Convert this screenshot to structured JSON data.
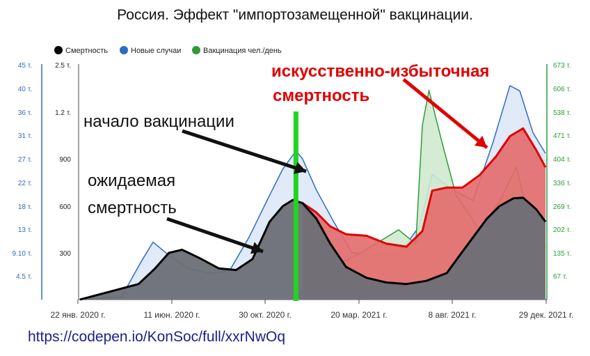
{
  "title": "Россия. Эффект \"импортозамещенной\" вакцинации.",
  "url_text": "https://codepen.io/KonSoc/full/xxrNwOq",
  "chart_data": {
    "type": "area",
    "legend": [
      {
        "name": "Смертность",
        "color": "#000000"
      },
      {
        "name": "Новые случаи",
        "color": "#2b6cc4"
      },
      {
        "name": "Вакцинация чел./день",
        "color": "#2e9a3a"
      }
    ],
    "legend_position": "top-left",
    "x_ticks": [
      "22 янв. 2020 г.",
      "11 июн. 2020 г.",
      "30 окт. 2020 г.",
      "20 мар. 2021 г.",
      "8 авг. 2021 г.",
      "29 дек. 2021 г."
    ],
    "x_range": [
      "2020-01-22",
      "2021-12-29"
    ],
    "y_left_ticks": [
      "4.5 т.",
      "9.10 т.",
      "13 т.",
      "18 т.",
      "22 т.",
      "27 т.",
      "31 т.",
      "36 т.",
      "40 т.",
      "45 т."
    ],
    "y_left_range": [
      0,
      45000
    ],
    "y_mid_ticks": [
      "300",
      "600",
      "900",
      "1.2 т.",
      "2.5 т."
    ],
    "y_right_ticks": [
      "67 т.",
      "135 т.",
      "202 т.",
      "269 т.",
      "336 т.",
      "404 т.",
      "471 т.",
      "538 т.",
      "606 т.",
      "673 т."
    ],
    "y_right_range": [
      0,
      673000
    ],
    "grid": false,
    "series": [
      {
        "name": "Смертность",
        "color": "#000000",
        "fill": "#6b6f76",
        "x": [
          "2020-01-22",
          "2020-04-20",
          "2020-05-15",
          "2020-06-05",
          "2020-06-25",
          "2020-07-20",
          "2020-08-20",
          "2020-09-15",
          "2020-10-10",
          "2020-11-05",
          "2020-11-25",
          "2020-12-10",
          "2020-12-25",
          "2021-01-15",
          "2021-02-05",
          "2021-03-01",
          "2021-04-01",
          "2021-05-01",
          "2021-06-01",
          "2021-07-01",
          "2021-08-01",
          "2021-08-20",
          "2021-09-10",
          "2021-10-01",
          "2021-10-20",
          "2021-11-10",
          "2021-11-25",
          "2021-12-15",
          "2021-12-29"
        ],
        "values": [
          0,
          100,
          200,
          300,
          320,
          270,
          200,
          190,
          260,
          500,
          600,
          640,
          620,
          520,
          360,
          210,
          140,
          110,
          100,
          120,
          170,
          280,
          400,
          520,
          600,
          650,
          655,
          580,
          500
        ]
      },
      {
        "name": "Новые случаи",
        "color": "#2b6cc4",
        "fill": "#dde8f7",
        "x": [
          "2020-01-22",
          "2020-03-25",
          "2020-04-25",
          "2020-05-12",
          "2020-06-05",
          "2020-07-05",
          "2020-08-05",
          "2020-09-05",
          "2020-10-05",
          "2020-11-05",
          "2020-11-25",
          "2020-12-15",
          "2020-12-25",
          "2021-01-15",
          "2021-02-10",
          "2021-03-10",
          "2021-04-15",
          "2021-05-20",
          "2021-06-20",
          "2021-07-10",
          "2021-08-10",
          "2021-09-10",
          "2021-10-10",
          "2021-11-05",
          "2021-11-20",
          "2021-12-10",
          "2021-12-29"
        ],
        "values": [
          0,
          500,
          7500,
          11000,
          8500,
          6000,
          5000,
          5500,
          12000,
          20000,
          25000,
          28500,
          27000,
          21000,
          15000,
          9000,
          8500,
          8500,
          14000,
          24000,
          21000,
          19000,
          30000,
          41000,
          40000,
          32000,
          28000
        ]
      },
      {
        "name": "Вакцинация чел./день",
        "color": "#2e9a3a",
        "fill": "#cfe9cf",
        "x": [
          "2020-12-15",
          "2021-01-10",
          "2021-02-10",
          "2021-03-20",
          "2021-04-15",
          "2021-05-20",
          "2021-06-15",
          "2021-06-25",
          "2021-07-05",
          "2021-07-25",
          "2021-08-15",
          "2021-09-20",
          "2021-10-20",
          "2021-11-15",
          "2021-12-10",
          "2021-12-29"
        ],
        "values": [
          0,
          70000,
          95000,
          130000,
          160000,
          200000,
          160000,
          500000,
          600000,
          450000,
          300000,
          200000,
          280000,
          380000,
          180000,
          150000
        ]
      },
      {
        "name": "",
        "color": "#e00000",
        "fill": "#e36a6a",
        "x": [
          "2020-12-25",
          "2021-01-15",
          "2021-02-05",
          "2021-03-01",
          "2021-04-01",
          "2021-05-01",
          "2021-06-01",
          "2021-06-25",
          "2021-07-10",
          "2021-08-01",
          "2021-08-25",
          "2021-09-20",
          "2021-10-15",
          "2021-11-05",
          "2021-11-25",
          "2021-12-15",
          "2021-12-29"
        ],
        "values": [
          620,
          560,
          470,
          420,
          410,
          360,
          340,
          440,
          700,
          720,
          720,
          800,
          920,
          1050,
          1100,
          960,
          850
        ]
      }
    ],
    "annotations": [
      {
        "text": "начало вакцинации",
        "color": "#111111"
      },
      {
        "text": "ожидаемая",
        "color": "#111111"
      },
      {
        "text": "смертность",
        "color": "#111111"
      },
      {
        "text": "искусственно-избыточная",
        "color": "#e00000"
      },
      {
        "text": "смертность",
        "color": "#e00000"
      }
    ],
    "vaccination_start_marker": {
      "date": "2020-12-15",
      "color": "#22d422"
    }
  }
}
